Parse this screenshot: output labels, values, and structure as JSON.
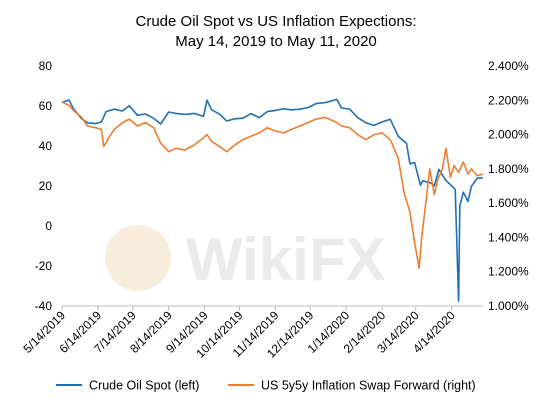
{
  "chart_data": {
    "type": "line",
    "title_lines": [
      "Crude Oil Spot vs US Inflation Expections:",
      "May 14, 2019 to May 11, 2020"
    ],
    "x_tick_labels": [
      "5/14/2019",
      "6/14/2019",
      "7/14/2019",
      "8/14/2019",
      "9/14/2019",
      "10/14/2019",
      "11/14/2019",
      "12/14/2019",
      "1/14/2020",
      "2/14/2020",
      "3/14/2020",
      "4/14/2020"
    ],
    "x_range": [
      "2019-05-14",
      "2020-05-11"
    ],
    "y_left": {
      "range": [
        -40,
        80
      ],
      "tick_labels": [
        "80",
        "60",
        "40",
        "20",
        "0",
        "-20",
        "-40"
      ],
      "tick_values": [
        80,
        60,
        40,
        20,
        0,
        -20,
        -40
      ]
    },
    "y_right": {
      "range": [
        1.0,
        2.4
      ],
      "unit": "%",
      "tick_labels": [
        "2.400%",
        "2.200%",
        "2.000%",
        "1.800%",
        "1.600%",
        "1.400%",
        "1.200%",
        "1.000%"
      ],
      "tick_values": [
        2.4,
        2.2,
        2.0,
        1.8,
        1.6,
        1.4,
        1.2,
        1.0
      ]
    },
    "grid": false,
    "legend_position": "bottom",
    "series": [
      {
        "name": "Crude Oil Spot (left)",
        "axis": "left",
        "color": "#1f6fb5",
        "points": [
          [
            "2019-05-14",
            61.8
          ],
          [
            "2019-05-20",
            63.0
          ],
          [
            "2019-05-24",
            58.5
          ],
          [
            "2019-05-31",
            53.6
          ],
          [
            "2019-06-05",
            51.6
          ],
          [
            "2019-06-12",
            51.2
          ],
          [
            "2019-06-17",
            52.0
          ],
          [
            "2019-06-21",
            57.2
          ],
          [
            "2019-06-28",
            58.4
          ],
          [
            "2019-07-05",
            57.5
          ],
          [
            "2019-07-11",
            60.1
          ],
          [
            "2019-07-18",
            55.4
          ],
          [
            "2019-07-25",
            56.0
          ],
          [
            "2019-08-01",
            53.9
          ],
          [
            "2019-08-07",
            51.0
          ],
          [
            "2019-08-14",
            57.0
          ],
          [
            "2019-08-20",
            56.3
          ],
          [
            "2019-08-28",
            55.8
          ],
          [
            "2019-09-05",
            56.3
          ],
          [
            "2019-09-13",
            54.8
          ],
          [
            "2019-09-16",
            62.9
          ],
          [
            "2019-09-20",
            58.1
          ],
          [
            "2019-09-27",
            55.9
          ],
          [
            "2019-10-03",
            52.5
          ],
          [
            "2019-10-10",
            53.6
          ],
          [
            "2019-10-17",
            53.9
          ],
          [
            "2019-10-24",
            56.2
          ],
          [
            "2019-10-31",
            54.2
          ],
          [
            "2019-11-07",
            57.2
          ],
          [
            "2019-11-14",
            57.8
          ],
          [
            "2019-11-21",
            58.6
          ],
          [
            "2019-11-28",
            58.1
          ],
          [
            "2019-12-05",
            58.4
          ],
          [
            "2019-12-12",
            59.2
          ],
          [
            "2019-12-19",
            61.2
          ],
          [
            "2019-12-27",
            61.7
          ],
          [
            "2020-01-06",
            63.3
          ],
          [
            "2020-01-10",
            59.0
          ],
          [
            "2020-01-17",
            58.5
          ],
          [
            "2020-01-24",
            54.2
          ],
          [
            "2020-01-31",
            51.6
          ],
          [
            "2020-02-07",
            50.3
          ],
          [
            "2020-02-14",
            52.0
          ],
          [
            "2020-02-21",
            53.4
          ],
          [
            "2020-02-28",
            44.8
          ],
          [
            "2020-03-06",
            41.3
          ],
          [
            "2020-03-09",
            31.1
          ],
          [
            "2020-03-13",
            31.7
          ],
          [
            "2020-03-18",
            20.4
          ],
          [
            "2020-03-20",
            22.6
          ],
          [
            "2020-03-27",
            21.5
          ],
          [
            "2020-03-30",
            20.1
          ],
          [
            "2020-04-03",
            28.3
          ],
          [
            "2020-04-09",
            22.8
          ],
          [
            "2020-04-14",
            20.1
          ],
          [
            "2020-04-17",
            18.3
          ],
          [
            "2020-04-20",
            -37.6
          ],
          [
            "2020-04-21",
            10.0
          ],
          [
            "2020-04-24",
            16.9
          ],
          [
            "2020-04-28",
            12.3
          ],
          [
            "2020-05-01",
            19.8
          ],
          [
            "2020-05-06",
            23.9
          ],
          [
            "2020-05-11",
            24.1
          ]
        ]
      },
      {
        "name": "US 5y5y Inflation Swap Forward (right)",
        "axis": "right",
        "color": "#ed7d31",
        "points": [
          [
            "2019-05-14",
            2.19
          ],
          [
            "2019-05-20",
            2.17
          ],
          [
            "2019-05-24",
            2.14
          ],
          [
            "2019-05-31",
            2.1
          ],
          [
            "2019-06-05",
            2.05
          ],
          [
            "2019-06-12",
            2.04
          ],
          [
            "2019-06-17",
            2.03
          ],
          [
            "2019-06-19",
            1.93
          ],
          [
            "2019-06-24",
            1.99
          ],
          [
            "2019-06-28",
            2.03
          ],
          [
            "2019-07-05",
            2.07
          ],
          [
            "2019-07-11",
            2.09
          ],
          [
            "2019-07-18",
            2.05
          ],
          [
            "2019-07-25",
            2.07
          ],
          [
            "2019-08-01",
            2.04
          ],
          [
            "2019-08-07",
            1.95
          ],
          [
            "2019-08-14",
            1.9
          ],
          [
            "2019-08-20",
            1.92
          ],
          [
            "2019-08-28",
            1.91
          ],
          [
            "2019-09-05",
            1.94
          ],
          [
            "2019-09-13",
            1.98
          ],
          [
            "2019-09-16",
            2.0
          ],
          [
            "2019-09-20",
            1.96
          ],
          [
            "2019-09-27",
            1.93
          ],
          [
            "2019-10-03",
            1.9
          ],
          [
            "2019-10-10",
            1.94
          ],
          [
            "2019-10-17",
            1.97
          ],
          [
            "2019-10-24",
            1.99
          ],
          [
            "2019-10-31",
            2.01
          ],
          [
            "2019-11-07",
            2.04
          ],
          [
            "2019-11-14",
            2.02
          ],
          [
            "2019-11-21",
            2.01
          ],
          [
            "2019-11-28",
            2.03
          ],
          [
            "2019-12-05",
            2.05
          ],
          [
            "2019-12-12",
            2.07
          ],
          [
            "2019-12-19",
            2.09
          ],
          [
            "2019-12-27",
            2.1
          ],
          [
            "2020-01-06",
            2.07
          ],
          [
            "2020-01-10",
            2.05
          ],
          [
            "2020-01-17",
            2.04
          ],
          [
            "2020-01-24",
            2.0
          ],
          [
            "2020-01-31",
            1.97
          ],
          [
            "2020-02-07",
            2.0
          ],
          [
            "2020-02-14",
            2.01
          ],
          [
            "2020-02-21",
            1.97
          ],
          [
            "2020-02-28",
            1.86
          ],
          [
            "2020-03-04",
            1.66
          ],
          [
            "2020-03-09",
            1.55
          ],
          [
            "2020-03-13",
            1.37
          ],
          [
            "2020-03-17",
            1.22
          ],
          [
            "2020-03-19",
            1.39
          ],
          [
            "2020-03-23",
            1.62
          ],
          [
            "2020-03-26",
            1.8
          ],
          [
            "2020-03-30",
            1.65
          ],
          [
            "2020-04-02",
            1.74
          ],
          [
            "2020-04-06",
            1.8
          ],
          [
            "2020-04-09",
            1.92
          ],
          [
            "2020-04-13",
            1.75
          ],
          [
            "2020-04-16",
            1.82
          ],
          [
            "2020-04-20",
            1.78
          ],
          [
            "2020-04-24",
            1.84
          ],
          [
            "2020-04-28",
            1.77
          ],
          [
            "2020-05-01",
            1.8
          ],
          [
            "2020-05-06",
            1.76
          ],
          [
            "2020-05-11",
            1.77
          ]
        ]
      }
    ],
    "watermark": "WikiFX"
  }
}
